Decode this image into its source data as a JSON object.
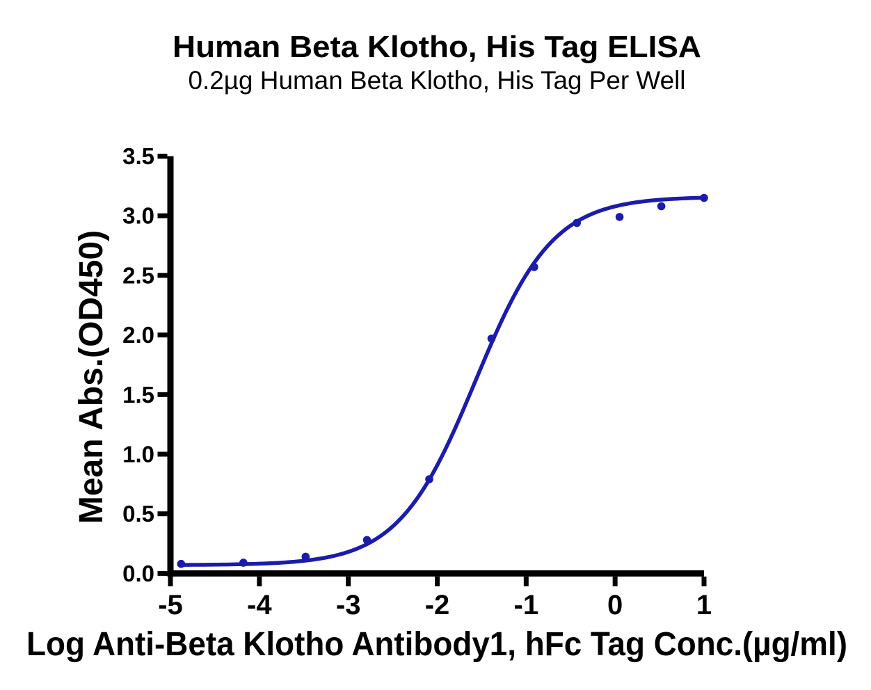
{
  "header": {
    "title": "Human Beta Klotho, His Tag ELISA",
    "subtitle": "0.2µg Human Beta Klotho, His Tag Per Well"
  },
  "chart_data": {
    "type": "scatter",
    "title": "Human Beta Klotho, His Tag ELISA",
    "subtitle": "0.2µg Human Beta Klotho, His Tag Per Well",
    "xlabel": "Log Anti-Beta Klotho Antibody1, hFc Tag Conc.(µg/ml)",
    "ylabel": "Mean Abs.(OD450)",
    "xlim": [
      -5,
      1
    ],
    "ylim": [
      0,
      3.5
    ],
    "x_tick_values": [
      -5,
      -4,
      -3,
      -2,
      -1,
      0,
      1
    ],
    "x_tick_labels": [
      "-5",
      "-4",
      "-3",
      "-2",
      "-1",
      "0",
      "1"
    ],
    "y_tick_values": [
      0,
      0.5,
      1,
      1.5,
      2,
      2.5,
      3,
      3.5
    ],
    "y_tick_labels": [
      "0.0",
      "0.5",
      "1.0",
      "1.5",
      "2.0",
      "2.5",
      "3.0",
      "3.5"
    ],
    "grid": false,
    "legend": "none",
    "series_name": "Anti-Beta Klotho Antibody1, hFc Tag",
    "series_color": "#1B1BAD",
    "axis_color": "#000000",
    "points": [
      {
        "x": -4.88,
        "y": 0.08
      },
      {
        "x": -4.18,
        "y": 0.09
      },
      {
        "x": -3.48,
        "y": 0.14
      },
      {
        "x": -2.79,
        "y": 0.28
      },
      {
        "x": -2.09,
        "y": 0.79
      },
      {
        "x": -1.39,
        "y": 1.97
      },
      {
        "x": -0.91,
        "y": 2.57
      },
      {
        "x": -0.43,
        "y": 2.94
      },
      {
        "x": 0.05,
        "y": 2.99
      },
      {
        "x": 0.52,
        "y": 3.08
      },
      {
        "x": 1.0,
        "y": 3.15
      }
    ],
    "curve_fit": {
      "model": "4PL",
      "bottom": 0.07,
      "top": 3.16,
      "logEC50": -1.57,
      "hill": 1.0,
      "x_start": -4.88,
      "x_end": 1.0
    }
  }
}
